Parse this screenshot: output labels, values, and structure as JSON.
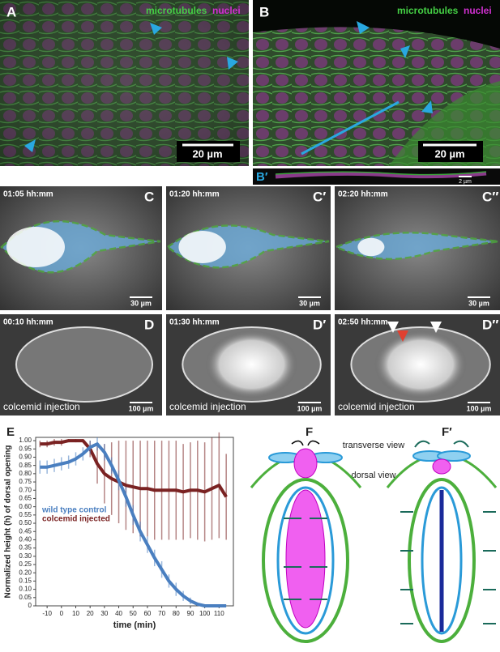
{
  "panels": {
    "A": {
      "label": "A",
      "channel_1": "microtubules",
      "channel_2": "nuclei",
      "scale_bar": "20 µm"
    },
    "B": {
      "label": "B",
      "channel_1": "microtubules",
      "channel_2": "nuclei",
      "scale_bar": "20 µm"
    },
    "B_prime": {
      "label": "B′",
      "scale_bar": "2 µm"
    },
    "C": [
      {
        "label": "C",
        "time": "01:05 hh:mm",
        "scale_bar": "30 µm"
      },
      {
        "label": "C′",
        "time": "01:20 hh:mm",
        "scale_bar": "30 µm"
      },
      {
        "label": "C″",
        "time": "02:20 hh:mm",
        "scale_bar": "30 µm"
      }
    ],
    "D": [
      {
        "label": "D",
        "time": "00:10 hh:mm",
        "treatment": "colcemid injection",
        "scale_bar": "100 µm"
      },
      {
        "label": "D′",
        "time": "01:30 hh:mm",
        "treatment": "colcemid injection",
        "scale_bar": "100 µm"
      },
      {
        "label": "D″",
        "time": "02:50 hh:mm",
        "treatment": "colcemid injection",
        "scale_bar": "100 µm"
      }
    ]
  },
  "chart_data": {
    "type": "line",
    "panel_label": "E",
    "y_label": "Normalized height (h) of dorsal opening",
    "x_label": "time (min)",
    "x": [
      -15,
      -10,
      -5,
      0,
      5,
      10,
      15,
      20,
      25,
      30,
      35,
      40,
      45,
      50,
      55,
      60,
      65,
      70,
      75,
      80,
      85,
      90,
      95,
      100,
      105,
      110,
      115
    ],
    "series": [
      {
        "name": "wild type control",
        "color": "#4a7fc0",
        "values": [
          0.84,
          0.84,
          0.85,
          0.86,
          0.87,
          0.89,
          0.92,
          0.96,
          0.98,
          0.93,
          0.85,
          0.76,
          0.66,
          0.55,
          0.45,
          0.37,
          0.29,
          0.22,
          0.15,
          0.1,
          0.06,
          0.03,
          0.01,
          0,
          0,
          0,
          0
        ],
        "errors": [
          0.04,
          0.04,
          0.04,
          0.04,
          0.04,
          0.04,
          0.04,
          0.04,
          0.04,
          0.05,
          0.05,
          0.06,
          0.06,
          0.06,
          0.06,
          0.05,
          0.05,
          0.05,
          0.04,
          0.04,
          0.03,
          0.02,
          0.01,
          0,
          0,
          0,
          0
        ]
      },
      {
        "name": "colcemid injected",
        "color": "#7a2222",
        "values": [
          0.98,
          0.98,
          0.99,
          0.99,
          1,
          1,
          1,
          0.95,
          0.86,
          0.8,
          0.77,
          0.75,
          0.73,
          0.72,
          0.71,
          0.71,
          0.7,
          0.7,
          0.7,
          0.7,
          0.69,
          0.7,
          0.7,
          0.69,
          0.71,
          0.73,
          0.66
        ],
        "errors": [
          0.02,
          0.02,
          0.02,
          0.02,
          0.01,
          0.01,
          0.01,
          0.05,
          0.12,
          0.18,
          0.22,
          0.25,
          0.27,
          0.28,
          0.29,
          0.29,
          0.3,
          0.3,
          0.3,
          0.3,
          0.29,
          0.29,
          0.3,
          0.3,
          0.31,
          0.32,
          0.26
        ]
      }
    ],
    "xlim": [
      -18,
      120
    ],
    "xticks": [
      -10,
      0,
      10,
      20,
      30,
      40,
      50,
      60,
      70,
      80,
      90,
      100,
      110
    ],
    "ylim": [
      0,
      1.02
    ],
    "yticks": [
      0,
      0.05,
      {
        "value": 0.1,
        "label": "0.10"
      },
      0.15,
      {
        "value": 0.2,
        "label": "0.20"
      },
      0.25,
      {
        "value": 0.3,
        "label": "0.30"
      },
      0.35,
      {
        "value": 0.4,
        "label": "0.40"
      },
      0.45,
      {
        "value": 0.5,
        "label": "0.50"
      },
      0.55,
      {
        "value": 0.6,
        "label": "0.60"
      },
      0.65,
      {
        "value": 0.7,
        "label": "0.70"
      },
      0.75,
      {
        "value": 0.8,
        "label": "0.80"
      },
      0.85,
      {
        "value": 0.9,
        "label": "0.90"
      },
      0.95,
      {
        "value": 1,
        "label": "1.00"
      }
    ],
    "legend": "left"
  },
  "diagram": {
    "panels": [
      {
        "label": "F"
      },
      {
        "label": "F′"
      }
    ],
    "transverse_label": "transverse view",
    "dorsal_label": "dorsal view"
  }
}
